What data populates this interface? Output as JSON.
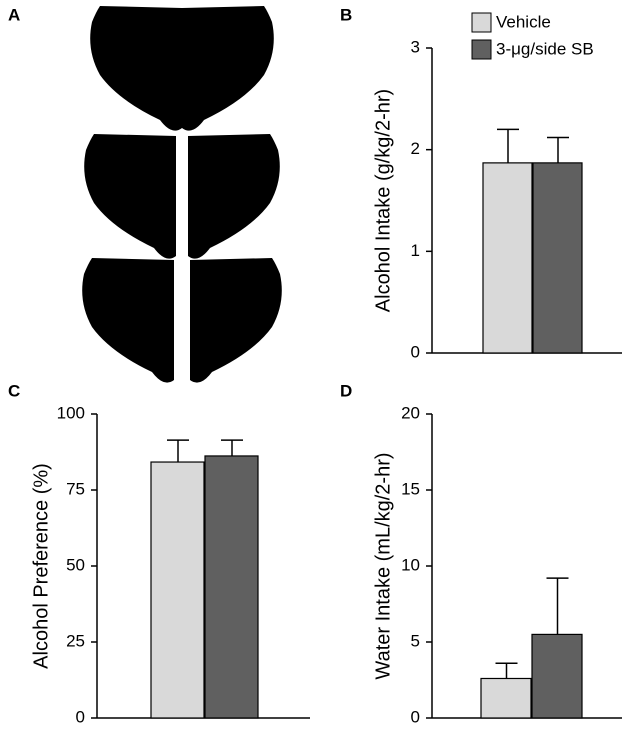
{
  "panel_a": {
    "label": "A"
  },
  "chart_data": [
    {
      "type": "bar",
      "panel": "B",
      "ylabel": "Alcohol Intake (g/kg/2-hr)",
      "ylim": [
        0,
        3
      ],
      "yticks": [
        0,
        1,
        2,
        3
      ],
      "legend": "upper right",
      "series": [
        {
          "name": "Vehicle",
          "color": "#d9d9d9",
          "values": [
            1.87
          ],
          "errors": [
            0.33
          ]
        },
        {
          "name": "3-μg/side SB",
          "color": "#606060",
          "values": [
            1.87
          ],
          "errors": [
            0.25
          ]
        }
      ]
    },
    {
      "type": "bar",
      "panel": "C",
      "ylabel": "Alcohol Preference (%)",
      "ylim": [
        0,
        100
      ],
      "yticks": [
        0,
        25,
        50,
        75,
        100
      ],
      "series": [
        {
          "color": "#d9d9d9",
          "values": [
            84.2
          ],
          "errors": [
            7.2
          ]
        },
        {
          "color": "#606060",
          "values": [
            86.2
          ],
          "errors": [
            5.2
          ]
        }
      ]
    },
    {
      "type": "bar",
      "panel": "D",
      "ylabel": "Water Intake (mL/kg/2-hr)",
      "ylim": [
        0,
        20
      ],
      "yticks": [
        0,
        5,
        10,
        15,
        20
      ],
      "series": [
        {
          "color": "#d9d9d9",
          "values": [
            2.6
          ],
          "errors": [
            1.0
          ]
        },
        {
          "color": "#606060",
          "values": [
            5.5
          ],
          "errors": [
            3.7
          ]
        }
      ]
    }
  ]
}
